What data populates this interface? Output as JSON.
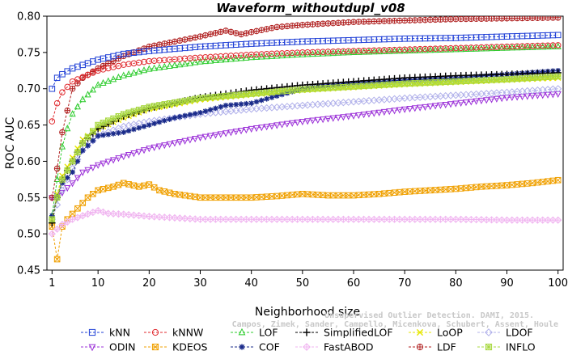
{
  "chart_data": {
    "type": "line",
    "title": "Waveform_withoutdupl_v08",
    "xlabel": "Neighborhood size",
    "ylabel": "ROC AUC",
    "xlim": [
      0,
      101
    ],
    "ylim": [
      0.45,
      0.8
    ],
    "x_ticks": [
      1,
      10,
      20,
      30,
      40,
      50,
      60,
      70,
      80,
      90,
      100
    ],
    "y_ticks": [
      0.45,
      0.5,
      0.55,
      0.6,
      0.65,
      0.7,
      0.75,
      0.8
    ],
    "grid": false,
    "legend_position": "bottom",
    "watermark": [
      "Unsupervised Outlier Detection. DAMI, 2015.",
      "Campos, Zimek, Sander, Campello, Micenkova, Schubert, Assent, Houle"
    ],
    "series": [
      {
        "name": "kNN",
        "color": "#1f3fd6",
        "marker": "square",
        "points": [
          [
            1,
            0.7
          ],
          [
            2,
            0.715
          ],
          [
            3,
            0.72
          ],
          [
            5,
            0.728
          ],
          [
            10,
            0.74
          ],
          [
            15,
            0.748
          ],
          [
            20,
            0.752
          ],
          [
            30,
            0.758
          ],
          [
            40,
            0.762
          ],
          [
            50,
            0.765
          ],
          [
            60,
            0.767
          ],
          [
            70,
            0.769
          ],
          [
            80,
            0.77
          ],
          [
            90,
            0.772
          ],
          [
            100,
            0.774
          ]
        ]
      },
      {
        "name": "kNNW",
        "color": "#e0282d",
        "marker": "circle",
        "points": [
          [
            1,
            0.655
          ],
          [
            2,
            0.68
          ],
          [
            3,
            0.695
          ],
          [
            5,
            0.71
          ],
          [
            10,
            0.725
          ],
          [
            15,
            0.733
          ],
          [
            20,
            0.738
          ],
          [
            30,
            0.743
          ],
          [
            40,
            0.747
          ],
          [
            50,
            0.75
          ],
          [
            60,
            0.752
          ],
          [
            70,
            0.754
          ],
          [
            80,
            0.756
          ],
          [
            90,
            0.758
          ],
          [
            100,
            0.76
          ]
        ]
      },
      {
        "name": "LOF",
        "color": "#2ecc2e",
        "marker": "triangle-up",
        "points": [
          [
            1,
            0.525
          ],
          [
            2,
            0.575
          ],
          [
            3,
            0.62
          ],
          [
            4,
            0.645
          ],
          [
            5,
            0.665
          ],
          [
            7,
            0.685
          ],
          [
            10,
            0.705
          ],
          [
            15,
            0.718
          ],
          [
            20,
            0.727
          ],
          [
            30,
            0.737
          ],
          [
            40,
            0.743
          ],
          [
            50,
            0.747
          ],
          [
            60,
            0.75
          ],
          [
            70,
            0.752
          ],
          [
            80,
            0.754
          ],
          [
            90,
            0.756
          ],
          [
            100,
            0.758
          ]
        ]
      },
      {
        "name": "SimplifiedLOF",
        "color": "#000000",
        "marker": "plus",
        "points": [
          [
            1,
            0.515
          ],
          [
            2,
            0.55
          ],
          [
            3,
            0.575
          ],
          [
            5,
            0.6
          ],
          [
            7,
            0.625
          ],
          [
            10,
            0.645
          ],
          [
            15,
            0.662
          ],
          [
            20,
            0.673
          ],
          [
            30,
            0.688
          ],
          [
            40,
            0.698
          ],
          [
            50,
            0.705
          ],
          [
            60,
            0.71
          ],
          [
            70,
            0.715
          ],
          [
            80,
            0.718
          ],
          [
            90,
            0.72
          ],
          [
            100,
            0.722
          ]
        ]
      },
      {
        "name": "LoOP",
        "color": "#e6e600",
        "marker": "x",
        "points": [
          [
            1,
            0.52
          ],
          [
            2,
            0.555
          ],
          [
            3,
            0.58
          ],
          [
            5,
            0.605
          ],
          [
            7,
            0.63
          ],
          [
            10,
            0.645
          ],
          [
            15,
            0.66
          ],
          [
            20,
            0.672
          ],
          [
            30,
            0.685
          ],
          [
            40,
            0.692
          ],
          [
            50,
            0.698
          ],
          [
            60,
            0.702
          ],
          [
            70,
            0.706
          ],
          [
            80,
            0.709
          ],
          [
            90,
            0.712
          ],
          [
            100,
            0.715
          ]
        ]
      },
      {
        "name": "LDOF",
        "color": "#b0b0ea",
        "marker": "diamond",
        "points": [
          [
            1,
            0.52
          ],
          [
            3,
            0.56
          ],
          [
            5,
            0.59
          ],
          [
            7,
            0.615
          ],
          [
            10,
            0.635
          ],
          [
            15,
            0.648
          ],
          [
            20,
            0.655
          ],
          [
            30,
            0.665
          ],
          [
            40,
            0.672
          ],
          [
            50,
            0.677
          ],
          [
            60,
            0.682
          ],
          [
            70,
            0.687
          ],
          [
            80,
            0.691
          ],
          [
            90,
            0.695
          ],
          [
            100,
            0.7
          ]
        ]
      },
      {
        "name": "ODIN",
        "color": "#9b30d8",
        "marker": "triangle-down",
        "points": [
          [
            1,
            0.55
          ],
          [
            2,
            0.553
          ],
          [
            3,
            0.557
          ],
          [
            5,
            0.57
          ],
          [
            7,
            0.585
          ],
          [
            10,
            0.595
          ],
          [
            15,
            0.607
          ],
          [
            20,
            0.618
          ],
          [
            30,
            0.633
          ],
          [
            40,
            0.645
          ],
          [
            50,
            0.655
          ],
          [
            60,
            0.663
          ],
          [
            70,
            0.672
          ],
          [
            80,
            0.68
          ],
          [
            90,
            0.688
          ],
          [
            100,
            0.693
          ]
        ]
      },
      {
        "name": "KDEOS",
        "color": "#f0a000",
        "marker": "square-x",
        "points": [
          [
            1,
            0.51
          ],
          [
            2,
            0.465
          ],
          [
            3,
            0.51
          ],
          [
            4,
            0.52
          ],
          [
            6,
            0.535
          ],
          [
            8,
            0.55
          ],
          [
            10,
            0.56
          ],
          [
            13,
            0.565
          ],
          [
            15,
            0.57
          ],
          [
            18,
            0.565
          ],
          [
            20,
            0.568
          ],
          [
            22,
            0.56
          ],
          [
            25,
            0.555
          ],
          [
            30,
            0.55
          ],
          [
            35,
            0.55
          ],
          [
            40,
            0.55
          ],
          [
            45,
            0.552
          ],
          [
            50,
            0.555
          ],
          [
            55,
            0.553
          ],
          [
            60,
            0.553
          ],
          [
            65,
            0.555
          ],
          [
            70,
            0.558
          ],
          [
            75,
            0.56
          ],
          [
            80,
            0.562
          ],
          [
            85,
            0.565
          ],
          [
            90,
            0.567
          ],
          [
            95,
            0.57
          ],
          [
            100,
            0.574
          ]
        ]
      },
      {
        "name": "COF",
        "color": "#1a2b8a",
        "marker": "asterisk",
        "points": [
          [
            1,
            0.525
          ],
          [
            2,
            0.55
          ],
          [
            3,
            0.57
          ],
          [
            5,
            0.585
          ],
          [
            7,
            0.615
          ],
          [
            10,
            0.635
          ],
          [
            15,
            0.64
          ],
          [
            20,
            0.65
          ],
          [
            25,
            0.66
          ],
          [
            30,
            0.667
          ],
          [
            35,
            0.677
          ],
          [
            40,
            0.68
          ],
          [
            45,
            0.69
          ],
          [
            50,
            0.7
          ],
          [
            55,
            0.705
          ],
          [
            60,
            0.708
          ],
          [
            70,
            0.712
          ],
          [
            80,
            0.715
          ],
          [
            90,
            0.72
          ],
          [
            100,
            0.725
          ]
        ]
      },
      {
        "name": "FastABOD",
        "color": "#f0b4f0",
        "marker": "diamond-plus",
        "points": [
          [
            1,
            0.5
          ],
          [
            3,
            0.513
          ],
          [
            5,
            0.52
          ],
          [
            7,
            0.525
          ],
          [
            10,
            0.532
          ],
          [
            12,
            0.528
          ],
          [
            15,
            0.527
          ],
          [
            20,
            0.524
          ],
          [
            25,
            0.522
          ],
          [
            30,
            0.52
          ],
          [
            40,
            0.52
          ],
          [
            50,
            0.52
          ],
          [
            60,
            0.52
          ],
          [
            70,
            0.52
          ],
          [
            80,
            0.52
          ],
          [
            90,
            0.519
          ],
          [
            100,
            0.519
          ]
        ]
      },
      {
        "name": "LDF",
        "color": "#b02020",
        "marker": "circle-plus",
        "points": [
          [
            1,
            0.55
          ],
          [
            2,
            0.59
          ],
          [
            3,
            0.64
          ],
          [
            4,
            0.67
          ],
          [
            5,
            0.7
          ],
          [
            7,
            0.715
          ],
          [
            10,
            0.728
          ],
          [
            15,
            0.745
          ],
          [
            20,
            0.758
          ],
          [
            25,
            0.765
          ],
          [
            30,
            0.772
          ],
          [
            35,
            0.78
          ],
          [
            38,
            0.775
          ],
          [
            40,
            0.778
          ],
          [
            45,
            0.785
          ],
          [
            50,
            0.788
          ],
          [
            55,
            0.79
          ],
          [
            60,
            0.792
          ],
          [
            70,
            0.794
          ],
          [
            80,
            0.796
          ],
          [
            90,
            0.797
          ],
          [
            100,
            0.798
          ]
        ]
      },
      {
        "name": "INFLO",
        "color": "#a8d840",
        "marker": "square-star",
        "points": [
          [
            1,
            0.52
          ],
          [
            2,
            0.55
          ],
          [
            3,
            0.575
          ],
          [
            5,
            0.6
          ],
          [
            7,
            0.625
          ],
          [
            10,
            0.65
          ],
          [
            15,
            0.665
          ],
          [
            20,
            0.675
          ],
          [
            30,
            0.687
          ],
          [
            40,
            0.693
          ],
          [
            50,
            0.699
          ],
          [
            60,
            0.703
          ],
          [
            70,
            0.707
          ],
          [
            80,
            0.71
          ],
          [
            90,
            0.713
          ],
          [
            100,
            0.717
          ]
        ]
      }
    ]
  }
}
